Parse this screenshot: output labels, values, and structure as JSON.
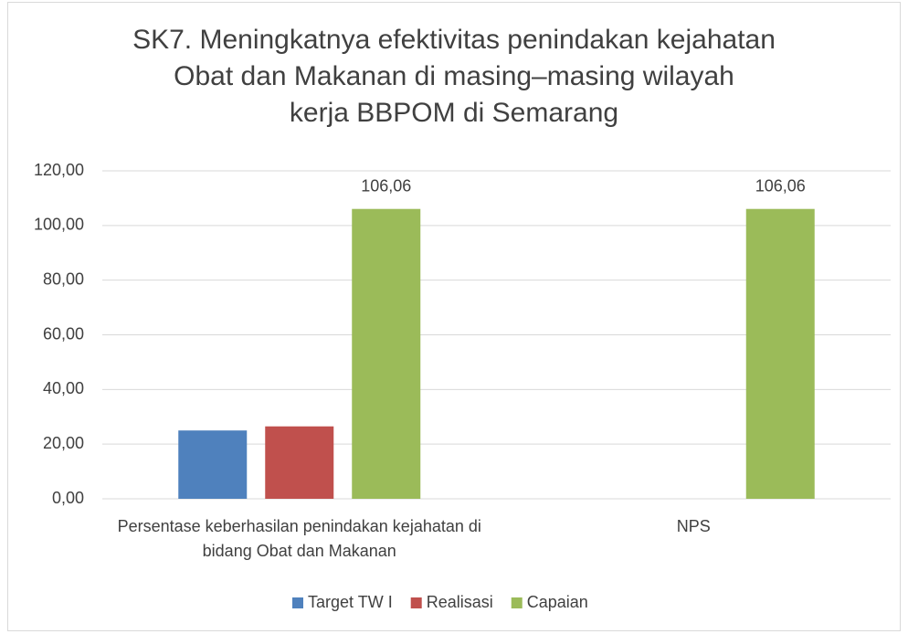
{
  "chart_data": {
    "type": "bar",
    "title": [
      "SK7. Meningkatnya efektivitas penindakan kejahatan",
      "Obat dan Makanan di masing–masing wilayah",
      "kerja BBPOM di Semarang"
    ],
    "categories": [
      "Persentase keberhasilan penindakan kejahatan di bidang Obat dan Makanan",
      "NPS"
    ],
    "series": [
      {
        "name": "Target TW I",
        "color": "#4f81bd",
        "values": [
          25,
          null
        ]
      },
      {
        "name": "Realisasi",
        "color": "#c0504d",
        "values": [
          26.5,
          null
        ]
      },
      {
        "name": "Capaian",
        "color": "#9bbb59",
        "values": [
          106.06,
          106.06
        ],
        "value_labels": [
          "106,06",
          "106,06"
        ]
      }
    ],
    "ylim": [
      0,
      120
    ],
    "yticks": [
      {
        "value": 0,
        "label": "0,00"
      },
      {
        "value": 20,
        "label": "20,00"
      },
      {
        "value": 40,
        "label": "40,00"
      },
      {
        "value": 60,
        "label": "60,00"
      },
      {
        "value": 80,
        "label": "80,00"
      },
      {
        "value": 100,
        "label": "100,00"
      },
      {
        "value": 120,
        "label": "120,00"
      }
    ],
    "grid": true,
    "legend": "bottom"
  }
}
